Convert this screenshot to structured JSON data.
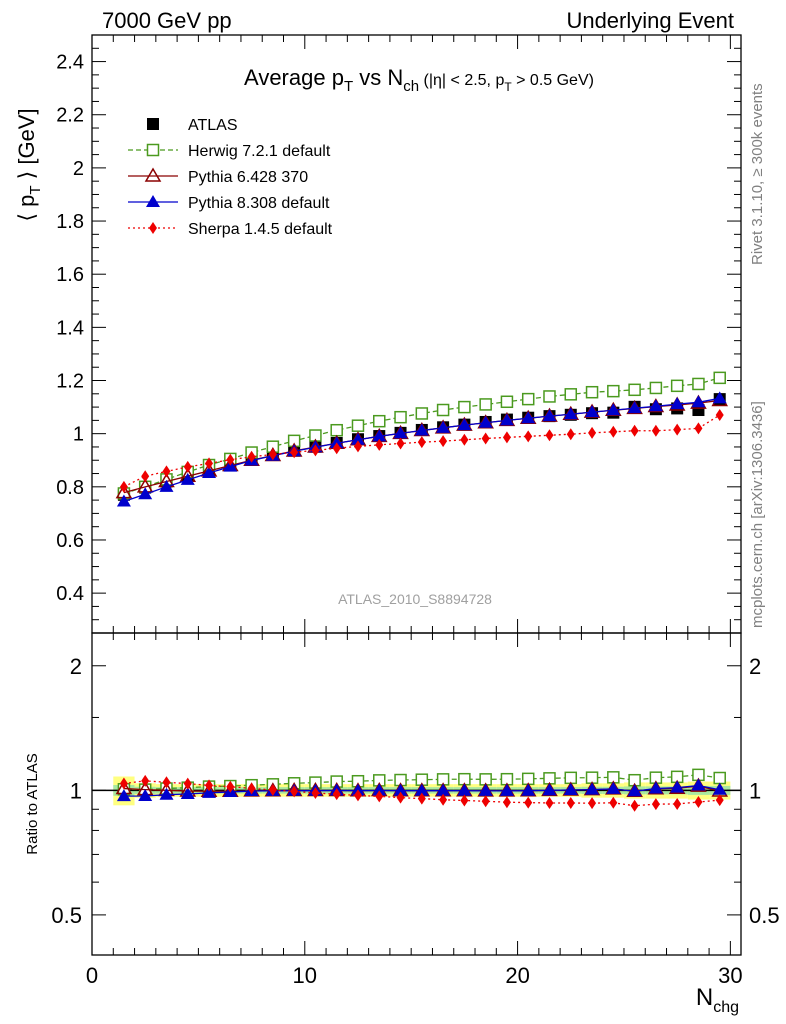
{
  "header": {
    "left": "7000 GeV pp",
    "right": "Underlying Event"
  },
  "side": {
    "rivet": "Rivet 3.1.10, ≥ 300k events",
    "mcplots": "mcplots.cern.ch [arXiv:1306.3436]"
  },
  "chart_data": [
    {
      "type": "scatter",
      "panel": "main",
      "title": "Average p_T vs N_ch (|η| < 2.5, p_T > 0.5 GeV)",
      "ylabel": "⟨ p_T ⟩ [GeV]",
      "xlabel": "N_chg",
      "xlim": [
        0,
        30.5
      ],
      "ylim": [
        0.25,
        2.5
      ],
      "log_y": false,
      "y_ticks": [
        0.4,
        0.6,
        0.8,
        1,
        1.2,
        1.4,
        1.6,
        1.8,
        2,
        2.2,
        2.4
      ],
      "y_tick_labels": [
        "0.4",
        "0.6",
        "0.8",
        "1",
        "1.2",
        "1.4",
        "1.6",
        "1.8",
        "2",
        "2.2",
        "2.4"
      ],
      "watermark": "ATLAS_2010_S8894728",
      "legend_position": "top-left",
      "x": [
        1.5,
        2.5,
        3.5,
        4.5,
        5.5,
        6.5,
        7.5,
        8.5,
        9.5,
        10.5,
        11.5,
        12.5,
        13.5,
        14.5,
        15.5,
        16.5,
        17.5,
        18.5,
        19.5,
        20.5,
        21.5,
        22.5,
        23.5,
        24.5,
        25.5,
        26.5,
        27.5,
        28.5,
        29.5
      ],
      "series": [
        {
          "name": "ATLAS",
          "color": "#000000",
          "marker": "square",
          "line": "none",
          "values": [
            0.77,
            0.797,
            0.82,
            0.843,
            0.864,
            0.884,
            0.903,
            0.92,
            0.936,
            0.951,
            0.965,
            0.979,
            0.991,
            1.003,
            1.014,
            1.024,
            1.034,
            1.044,
            1.053,
            1.06,
            1.066,
            1.071,
            1.077,
            1.079,
            1.101,
            1.092,
            1.095,
            1.089,
            1.13
          ]
        },
        {
          "name": "Herwig 7.2.1 default",
          "color": "#4b9a1f",
          "marker": "open-square",
          "line": "dashed",
          "values": [
            0.775,
            0.8,
            0.828,
            0.856,
            0.882,
            0.905,
            0.929,
            0.951,
            0.973,
            0.993,
            1.013,
            1.03,
            1.047,
            1.062,
            1.076,
            1.089,
            1.1,
            1.11,
            1.12,
            1.13,
            1.14,
            1.148,
            1.156,
            1.16,
            1.165,
            1.172,
            1.18,
            1.187,
            1.21
          ]
        },
        {
          "name": "Pythia 6.428 370",
          "color": "#8b0000",
          "marker": "open-triangle",
          "line": "solid",
          "values": [
            0.778,
            0.8,
            0.82,
            0.84,
            0.86,
            0.88,
            0.9,
            0.918,
            0.935,
            0.95,
            0.964,
            0.977,
            0.99,
            1.001,
            1.012,
            1.022,
            1.032,
            1.041,
            1.05,
            1.058,
            1.066,
            1.073,
            1.081,
            1.088,
            1.095,
            1.102,
            1.108,
            1.115,
            1.125
          ]
        },
        {
          "name": "Pythia 8.308 default",
          "color": "#0000cc",
          "marker": "triangle",
          "line": "solid",
          "values": [
            0.745,
            0.772,
            0.8,
            0.826,
            0.852,
            0.876,
            0.899,
            0.917,
            0.934,
            0.949,
            0.964,
            0.977,
            0.99,
            1.001,
            1.012,
            1.022,
            1.032,
            1.041,
            1.05,
            1.058,
            1.066,
            1.073,
            1.081,
            1.088,
            1.096,
            1.103,
            1.111,
            1.118,
            1.133
          ]
        },
        {
          "name": "Sherpa 1.4.5 default",
          "color": "#ee0000",
          "marker": "diamond",
          "line": "dotted",
          "values": [
            0.8,
            0.84,
            0.858,
            0.875,
            0.888,
            0.902,
            0.913,
            0.922,
            0.93,
            0.937,
            0.945,
            0.952,
            0.958,
            0.963,
            0.968,
            0.972,
            0.977,
            0.982,
            0.986,
            0.99,
            0.994,
            0.998,
            1.003,
            1.007,
            1.011,
            1.011,
            1.015,
            1.02,
            1.07
          ]
        }
      ]
    },
    {
      "type": "scatter",
      "panel": "ratio",
      "ylabel": "Ratio to ATLAS",
      "xlabel": "N_chg",
      "xlim": [
        0,
        30.5
      ],
      "ylim": [
        0.4,
        2.4
      ],
      "log_y": true,
      "x_ticks": [
        0,
        10,
        20,
        30
      ],
      "x_tick_labels": [
        "0",
        "10",
        "20",
        "30"
      ],
      "y_ticks": [
        0.5,
        1,
        2
      ],
      "y_tick_labels": [
        "0.5",
        "1",
        "2"
      ],
      "band_color_outer": "#ffff80",
      "band_color_inner": "#a8e8a0",
      "x": [
        1.5,
        2.5,
        3.5,
        4.5,
        5.5,
        6.5,
        7.5,
        8.5,
        9.5,
        10.5,
        11.5,
        12.5,
        13.5,
        14.5,
        15.5,
        16.5,
        17.5,
        18.5,
        19.5,
        20.5,
        21.5,
        22.5,
        23.5,
        24.5,
        25.5,
        26.5,
        27.5,
        28.5,
        29.5
      ],
      "band_outer_halfwidth": [
        0.08,
        0.04,
        0.035,
        0.035,
        0.035,
        0.035,
        0.035,
        0.035,
        0.035,
        0.035,
        0.035,
        0.035,
        0.035,
        0.035,
        0.035,
        0.035,
        0.035,
        0.035,
        0.035,
        0.035,
        0.035,
        0.035,
        0.04,
        0.04,
        0.045,
        0.045,
        0.045,
        0.05,
        0.05
      ],
      "band_inner_halfwidth": [
        0.03,
        0.02,
        0.018,
        0.018,
        0.018,
        0.018,
        0.018,
        0.018,
        0.018,
        0.018,
        0.018,
        0.018,
        0.018,
        0.018,
        0.018,
        0.018,
        0.018,
        0.018,
        0.018,
        0.018,
        0.018,
        0.018,
        0.02,
        0.02,
        0.022,
        0.022,
        0.022,
        0.025,
        0.025
      ],
      "series": [
        {
          "name": "Herwig 7.2.1 default",
          "color": "#4b9a1f",
          "marker": "open-square",
          "line": "dashed",
          "values": [
            1.006,
            1.004,
            1.01,
            1.015,
            1.021,
            1.024,
            1.029,
            1.034,
            1.04,
            1.044,
            1.05,
            1.052,
            1.057,
            1.059,
            1.061,
            1.063,
            1.064,
            1.063,
            1.064,
            1.066,
            1.069,
            1.072,
            1.073,
            1.075,
            1.058,
            1.073,
            1.078,
            1.09,
            1.071
          ]
        },
        {
          "name": "Pythia 6.428 370",
          "color": "#8b0000",
          "marker": "open-triangle",
          "line": "solid",
          "values": [
            1.01,
            1.004,
            1.0,
            0.996,
            0.995,
            0.995,
            0.997,
            0.998,
            0.999,
            0.999,
            0.999,
            0.998,
            0.999,
            0.998,
            0.998,
            0.998,
            0.998,
            0.997,
            0.997,
            0.998,
            1.0,
            1.002,
            1.004,
            1.008,
            0.995,
            1.009,
            1.012,
            1.024,
            0.996
          ]
        },
        {
          "name": "Pythia 8.308 default",
          "color": "#0000cc",
          "marker": "triangle",
          "line": "solid",
          "values": [
            0.968,
            0.969,
            0.976,
            0.98,
            0.986,
            0.991,
            0.996,
            0.997,
            0.998,
            0.998,
            0.999,
            0.998,
            0.999,
            0.998,
            0.998,
            0.998,
            0.998,
            0.997,
            0.997,
            0.998,
            1.0,
            1.002,
            1.004,
            1.008,
            0.995,
            1.01,
            1.015,
            1.027,
            1.003
          ]
        },
        {
          "name": "Sherpa 1.4.5 default",
          "color": "#ee0000",
          "marker": "diamond",
          "line": "dotted",
          "values": [
            1.039,
            1.054,
            1.046,
            1.038,
            1.028,
            1.02,
            1.011,
            1.002,
            0.994,
            0.985,
            0.979,
            0.972,
            0.967,
            0.96,
            0.955,
            0.949,
            0.945,
            0.941,
            0.936,
            0.934,
            0.932,
            0.932,
            0.931,
            0.933,
            0.918,
            0.926,
            0.927,
            0.937,
            0.947
          ]
        }
      ]
    }
  ]
}
